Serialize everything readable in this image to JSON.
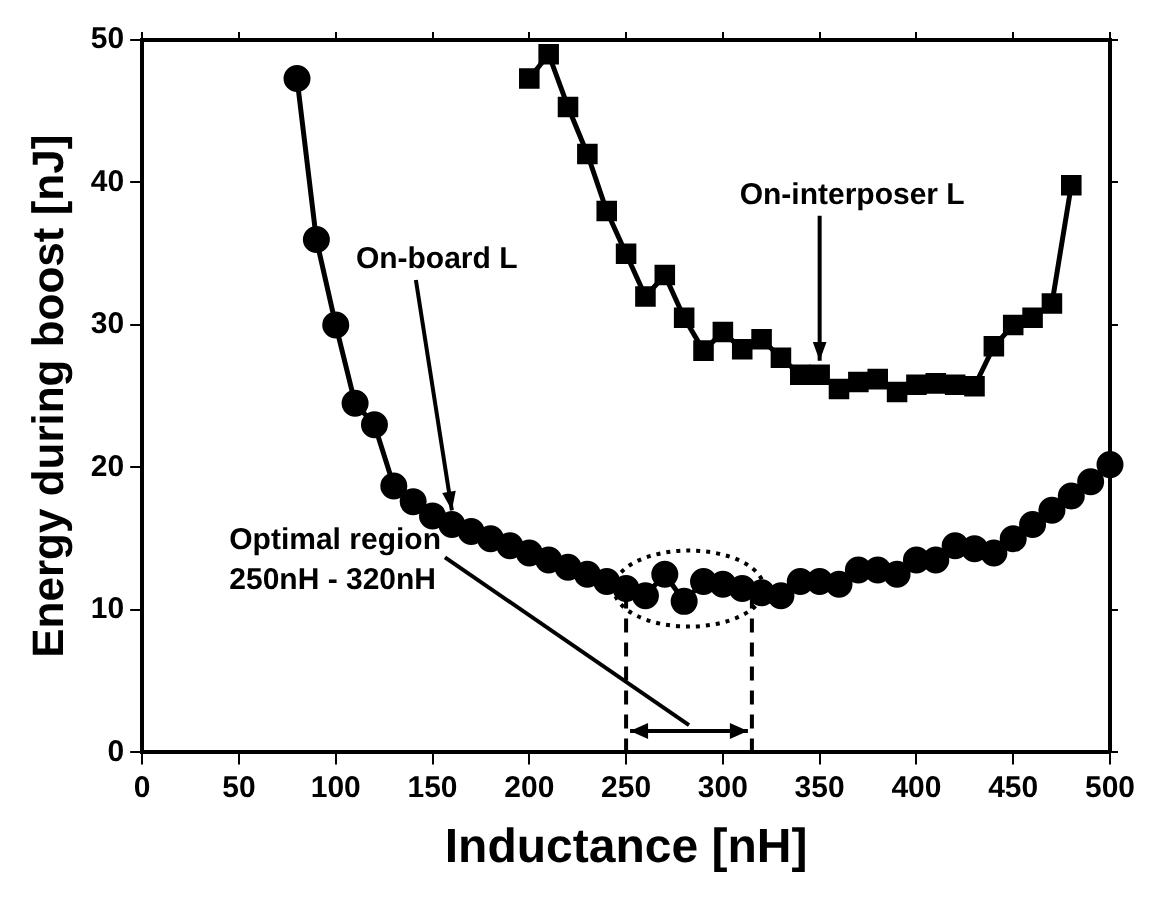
{
  "chart_data": {
    "type": "line",
    "xlabel": "Inductance [nH]",
    "ylabel": "Energy during boost [nJ]",
    "xlim": [
      0,
      500
    ],
    "xticks": [
      0,
      50,
      100,
      150,
      200,
      250,
      300,
      350,
      400,
      450,
      500
    ],
    "ylim": [
      0,
      50
    ],
    "yticks": [
      0,
      10,
      20,
      30,
      40,
      50
    ],
    "grid": false,
    "legend": false,
    "series": [
      {
        "color": "#000000",
        "marker": "circle",
        "x": [
          80,
          90,
          100,
          110,
          120,
          130,
          140,
          150,
          160,
          170,
          180,
          190,
          200,
          210,
          220,
          230,
          240,
          250,
          260,
          270,
          280,
          290,
          300,
          310,
          320,
          330,
          340,
          350,
          360,
          370,
          380,
          390,
          400,
          410,
          420,
          430,
          440,
          450,
          460,
          470,
          480,
          490,
          500
        ],
        "values": [
          47.3,
          36,
          30,
          24.5,
          23,
          18.7,
          17.6,
          16.6,
          16,
          15.5,
          15,
          14.5,
          14,
          13.5,
          13,
          12.5,
          12,
          11.5,
          11,
          12.5,
          10.6,
          12,
          11.8,
          11.5,
          11.2,
          11,
          12,
          12,
          11.8,
          12.8,
          12.8,
          12.5,
          13.5,
          13.5,
          14.5,
          14.3,
          14,
          15,
          16,
          17,
          18,
          19,
          20.2
        ]
      },
      {
        "color": "#000000",
        "marker": "square",
        "x": [
          200,
          210,
          220,
          230,
          240,
          250,
          260,
          270,
          280,
          290,
          300,
          310,
          320,
          330,
          340,
          350,
          360,
          370,
          380,
          390,
          400,
          410,
          420,
          430,
          440,
          450,
          460,
          470,
          480
        ],
        "values": [
          47.3,
          49,
          45.3,
          42,
          38,
          35,
          32,
          33.5,
          30.5,
          28.2,
          29.5,
          28.3,
          29,
          27.7,
          26.5,
          26.5,
          25.5,
          26,
          26.2,
          25.3,
          25.8,
          25.9,
          25.8,
          25.7,
          28.5,
          30,
          30.5,
          31.5,
          39.8
        ]
      }
    ],
    "ref_lines": [
      {
        "axis": "x",
        "value": 250,
        "line_style": "dashed"
      },
      {
        "axis": "x",
        "value": 315,
        "line_style": "dashed"
      }
    ],
    "annotations": [
      {
        "text": "On-board L",
        "x": 160,
        "y": 16
      },
      {
        "text": "On-interposer L",
        "x": 350,
        "y": 26.5
      },
      "Optimal region\n250nH - 320nH"
    ]
  }
}
